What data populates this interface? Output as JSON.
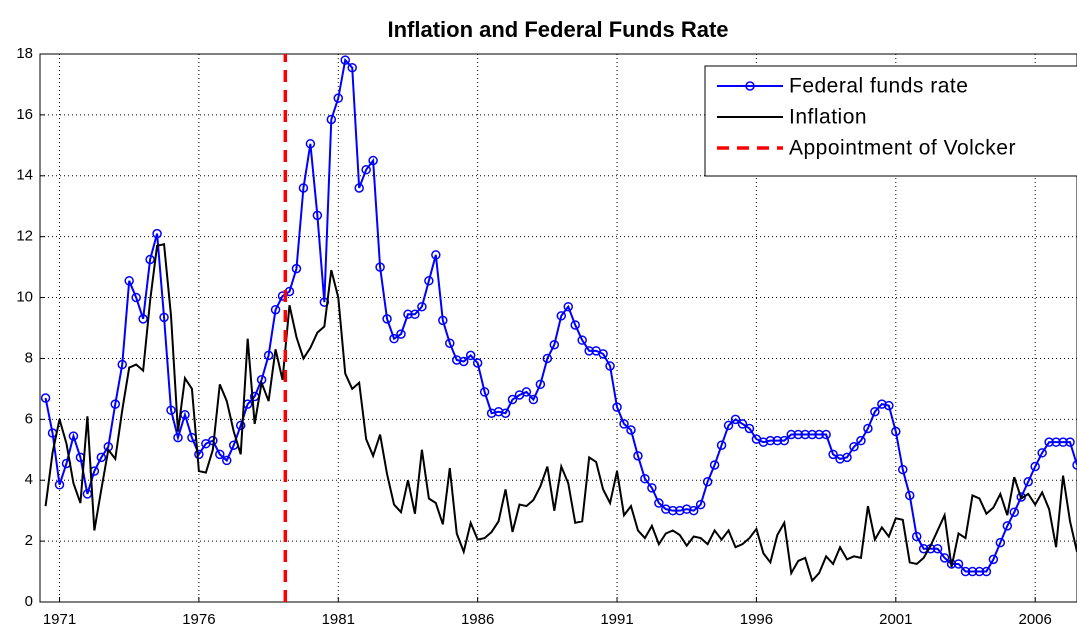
{
  "chart_data": {
    "type": "line",
    "title": "Inflation and Federal Funds Rate",
    "x": [
      1970.5,
      1970.75,
      1971,
      1971.25,
      1971.5,
      1971.75,
      1972,
      1972.25,
      1972.5,
      1972.75,
      1973,
      1973.25,
      1973.5,
      1973.75,
      1974,
      1974.25,
      1974.5,
      1974.75,
      1975,
      1975.25,
      1975.5,
      1975.75,
      1976,
      1976.25,
      1976.5,
      1976.75,
      1977,
      1977.25,
      1977.5,
      1977.75,
      1978,
      1978.25,
      1978.5,
      1978.75,
      1979,
      1979.25,
      1979.5,
      1979.75,
      1980,
      1980.25,
      1980.5,
      1980.75,
      1981,
      1981.25,
      1981.5,
      1981.75,
      1982,
      1982.25,
      1982.5,
      1982.75,
      1983,
      1983.25,
      1983.5,
      1983.75,
      1984,
      1984.25,
      1984.5,
      1984.75,
      1985,
      1985.25,
      1985.5,
      1985.75,
      1986,
      1986.25,
      1986.5,
      1986.75,
      1987,
      1987.25,
      1987.5,
      1987.75,
      1988,
      1988.25,
      1988.5,
      1988.75,
      1989,
      1989.25,
      1989.5,
      1989.75,
      1990,
      1990.25,
      1990.5,
      1990.75,
      1991,
      1991.25,
      1991.5,
      1991.75,
      1992,
      1992.25,
      1992.5,
      1992.75,
      1993,
      1993.25,
      1993.5,
      1993.75,
      1994,
      1994.25,
      1994.5,
      1994.75,
      1995,
      1995.25,
      1995.5,
      1995.75,
      1996,
      1996.25,
      1996.5,
      1996.75,
      1997,
      1997.25,
      1997.5,
      1997.75,
      1998,
      1998.25,
      1998.5,
      1998.75,
      1999,
      1999.25,
      1999.5,
      1999.75,
      2000,
      2000.25,
      2000.5,
      2000.75,
      2001,
      2001.25,
      2001.5,
      2001.75,
      2002,
      2002.25,
      2002.5,
      2002.75,
      2003,
      2003.25,
      2003.5,
      2003.75,
      2004,
      2004.25,
      2004.5,
      2004.75,
      2005,
      2005.25,
      2005.5,
      2005.75,
      2006,
      2006.25,
      2006.5,
      2006.75,
      2007,
      2007.25,
      2007.5
    ],
    "series": [
      {
        "name": "Federal funds rate",
        "color": "#0000ff",
        "marker": "o",
        "values": [
          6.7,
          5.55,
          3.85,
          4.55,
          5.45,
          4.75,
          3.55,
          4.3,
          4.75,
          5.1,
          6.5,
          7.8,
          10.55,
          10.0,
          9.3,
          11.25,
          12.1,
          9.35,
          6.3,
          5.4,
          6.15,
          5.4,
          4.85,
          5.2,
          5.3,
          4.85,
          4.65,
          5.15,
          5.8,
          6.5,
          6.75,
          7.3,
          8.1,
          9.6,
          10.05,
          10.2,
          10.95,
          13.6,
          15.05,
          12.7,
          9.85,
          15.85,
          16.55,
          17.8,
          17.55,
          13.6,
          14.2,
          14.5,
          11.0,
          9.3,
          8.65,
          8.8,
          9.45,
          9.45,
          9.7,
          10.55,
          11.4,
          9.25,
          8.5,
          7.95,
          7.9,
          8.1,
          7.85,
          6.9,
          6.2,
          6.25,
          6.2,
          6.65,
          6.8,
          6.9,
          6.65,
          7.15,
          8.0,
          8.45,
          9.4,
          9.7,
          9.1,
          8.6,
          8.25,
          8.25,
          8.15,
          7.75,
          6.4,
          5.85,
          5.65,
          4.8,
          4.05,
          3.75,
          3.25,
          3.05,
          3.0,
          3.0,
          3.05,
          3.0,
          3.2,
          3.95,
          4.5,
          5.15,
          5.8,
          6.0,
          5.85,
          5.7,
          5.35,
          5.25,
          5.3,
          5.3,
          5.3,
          5.5,
          5.5,
          5.5,
          5.5,
          5.5,
          5.5,
          4.85,
          4.7,
          4.75,
          5.1,
          5.3,
          5.7,
          6.25,
          6.5,
          6.45,
          5.6,
          4.35,
          3.5,
          2.15,
          1.75,
          1.75,
          1.75,
          1.45,
          1.25,
          1.25,
          1.0,
          1.0,
          1.0,
          1.0,
          1.4,
          1.95,
          2.5,
          2.95,
          3.45,
          3.95,
          4.45,
          4.9,
          5.25,
          5.25,
          5.25,
          5.25,
          4.5
        ]
      },
      {
        "name": "Inflation",
        "color": "#000000",
        "values": [
          3.15,
          4.9,
          6.0,
          5.2,
          3.9,
          3.25,
          6.1,
          2.35,
          3.7,
          5.0,
          4.7,
          6.3,
          7.7,
          7.8,
          7.6,
          9.9,
          11.7,
          11.75,
          9.4,
          5.6,
          7.35,
          7.0,
          4.3,
          4.25,
          5.0,
          7.15,
          6.6,
          5.6,
          4.85,
          8.65,
          5.85,
          7.2,
          6.6,
          8.3,
          7.3,
          9.75,
          8.7,
          8.0,
          8.35,
          8.85,
          9.05,
          10.9,
          10.0,
          7.5,
          7.0,
          7.2,
          5.35,
          4.8,
          5.5,
          4.2,
          3.2,
          2.95,
          4.0,
          2.9,
          5.0,
          3.4,
          3.25,
          2.55,
          4.4,
          2.25,
          1.65,
          2.6,
          2.05,
          2.1,
          2.3,
          2.65,
          3.7,
          2.3,
          3.2,
          3.15,
          3.35,
          3.8,
          4.45,
          3.0,
          4.45,
          3.9,
          2.6,
          2.65,
          4.75,
          4.6,
          3.7,
          3.25,
          4.3,
          2.85,
          3.15,
          2.35,
          2.1,
          2.5,
          1.9,
          2.25,
          2.35,
          2.2,
          1.85,
          2.15,
          2.1,
          1.9,
          2.35,
          2.05,
          2.35,
          1.8,
          1.9,
          2.1,
          2.4,
          1.6,
          1.3,
          2.2,
          2.6,
          0.95,
          1.35,
          1.45,
          0.7,
          0.95,
          1.5,
          1.25,
          1.8,
          1.4,
          1.5,
          1.45,
          3.15,
          2.05,
          2.45,
          2.15,
          2.75,
          2.7,
          1.3,
          1.25,
          1.45,
          1.85,
          2.35,
          2.85,
          1.15,
          2.25,
          2.1,
          3.5,
          3.4,
          2.9,
          3.1,
          3.55,
          2.85,
          4.1,
          3.4,
          3.55,
          3.2,
          3.6,
          3.05,
          1.8,
          4.15,
          2.65,
          1.65
        ]
      },
      {
        "name": "Appointment of Volcker",
        "color": "#ff0000",
        "line_style": "dashed",
        "x": [
          1979.1,
          1979.1
        ],
        "values": [
          0,
          18
        ]
      }
    ],
    "xlim": [
      1970.3,
      2007.5
    ],
    "xticks": [
      1971,
      1976,
      1981,
      1986,
      1991,
      1996,
      2001,
      2006
    ],
    "ylim": [
      0,
      18
    ],
    "yticks": [
      0,
      2,
      4,
      6,
      8,
      10,
      12,
      14,
      16,
      18
    ],
    "grid": true,
    "legend": "upper right"
  }
}
